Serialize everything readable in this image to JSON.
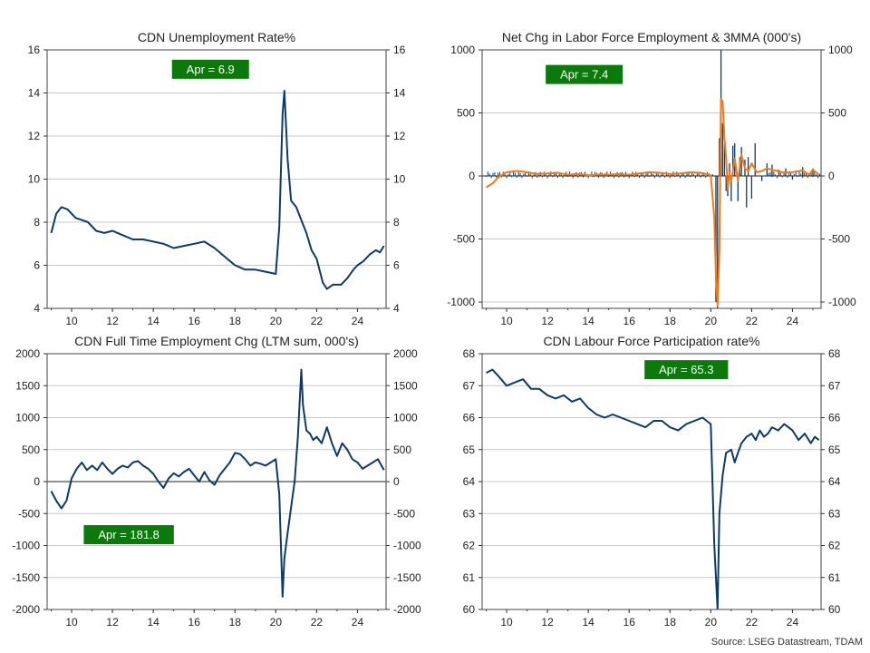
{
  "source": "Source: LSEG Datastream, TDAM",
  "colors": {
    "line": "#0d3a66",
    "orange": "#ef7a1a",
    "badge": "#0b7a0b",
    "grid": "#c8c8c8",
    "axis": "#333333"
  },
  "chart_data": [
    {
      "id": "unemp",
      "type": "line",
      "title": "CDN Unemployment Rate%",
      "ylim": [
        4,
        16
      ],
      "yticks": [
        4,
        6,
        8,
        10,
        12,
        14,
        16
      ],
      "xlim": [
        2008.8,
        2025.4
      ],
      "xticks": [
        10,
        12,
        14,
        16,
        18,
        20,
        22,
        24
      ],
      "annotation": "Apr  = 6.9",
      "annotation_x": 2016.8,
      "annotation_y": 15.1,
      "series": [
        {
          "values": [
            [
              2009.0,
              7.5
            ],
            [
              2009.25,
              8.4
            ],
            [
              2009.5,
              8.7
            ],
            [
              2009.8,
              8.6
            ],
            [
              2010.2,
              8.2
            ],
            [
              2010.5,
              8.1
            ],
            [
              2010.8,
              8.0
            ],
            [
              2011.2,
              7.6
            ],
            [
              2011.6,
              7.5
            ],
            [
              2012.0,
              7.6
            ],
            [
              2012.5,
              7.4
            ],
            [
              2013.0,
              7.2
            ],
            [
              2013.5,
              7.2
            ],
            [
              2014.0,
              7.1
            ],
            [
              2014.5,
              7.0
            ],
            [
              2015.0,
              6.8
            ],
            [
              2015.5,
              6.9
            ],
            [
              2016.0,
              7.0
            ],
            [
              2016.5,
              7.1
            ],
            [
              2017.0,
              6.8
            ],
            [
              2017.5,
              6.4
            ],
            [
              2018.0,
              6.0
            ],
            [
              2018.5,
              5.8
            ],
            [
              2019.0,
              5.8
            ],
            [
              2019.5,
              5.7
            ],
            [
              2020.0,
              5.6
            ],
            [
              2020.17,
              7.8
            ],
            [
              2020.33,
              13.0
            ],
            [
              2020.42,
              14.1
            ],
            [
              2020.58,
              10.9
            ],
            [
              2020.75,
              9.0
            ],
            [
              2021.0,
              8.7
            ],
            [
              2021.25,
              8.1
            ],
            [
              2021.5,
              7.5
            ],
            [
              2021.75,
              6.7
            ],
            [
              2022.0,
              6.3
            ],
            [
              2022.3,
              5.2
            ],
            [
              2022.5,
              4.9
            ],
            [
              2022.8,
              5.1
            ],
            [
              2023.2,
              5.1
            ],
            [
              2023.5,
              5.4
            ],
            [
              2023.8,
              5.8
            ],
            [
              2024.0,
              6.0
            ],
            [
              2024.3,
              6.2
            ],
            [
              2024.6,
              6.5
            ],
            [
              2024.9,
              6.7
            ],
            [
              2025.1,
              6.6
            ],
            [
              2025.3,
              6.9
            ]
          ]
        }
      ]
    },
    {
      "id": "netchg",
      "type": "bar+line",
      "title": "Net Chg in Labor Force Employment & 3MMA (000's)",
      "ylim": [
        -1050,
        1000
      ],
      "yticks": [
        -1000,
        -500,
        0,
        500,
        1000
      ],
      "xlim": [
        2008.8,
        2025.4
      ],
      "xticks": [
        10,
        12,
        14,
        16,
        18,
        20,
        22,
        24
      ],
      "annotation": "Apr  = 7.4",
      "annotation_x": 2013.8,
      "annotation_y": 805,
      "bars": [
        [
          2020.25,
          -1000
        ],
        [
          2020.33,
          -2000
        ],
        [
          2020.42,
          300
        ],
        [
          2020.5,
          1000
        ],
        [
          2020.58,
          420
        ],
        [
          2020.67,
          250
        ],
        [
          2020.75,
          -120
        ],
        [
          2020.83,
          -160
        ],
        [
          2020.92,
          100
        ],
        [
          2021.0,
          -200
        ],
        [
          2021.08,
          240
        ],
        [
          2021.17,
          260
        ],
        [
          2021.33,
          -200
        ],
        [
          2021.42,
          150
        ],
        [
          2021.5,
          230
        ],
        [
          2021.67,
          130
        ],
        [
          2021.75,
          -250
        ],
        [
          2021.83,
          150
        ],
        [
          2022.0,
          -180
        ],
        [
          2022.17,
          260
        ],
        [
          2022.5,
          -40
        ],
        [
          2022.75,
          100
        ],
        [
          2023.0,
          90
        ],
        [
          2023.33,
          50
        ],
        [
          2023.67,
          60
        ],
        [
          2024.0,
          -30
        ],
        [
          2024.5,
          70
        ],
        [
          2025.0,
          60
        ],
        [
          2025.33,
          7
        ]
      ],
      "bars_small_amp": 35,
      "series": [
        {
          "values": [
            [
              2009.0,
              -90
            ],
            [
              2009.3,
              -60
            ],
            [
              2009.6,
              -10
            ],
            [
              2010.0,
              30
            ],
            [
              2010.5,
              40
            ],
            [
              2011.0,
              30
            ],
            [
              2011.5,
              15
            ],
            [
              2012.0,
              20
            ],
            [
              2012.5,
              25
            ],
            [
              2013.0,
              10
            ],
            [
              2013.5,
              15
            ],
            [
              2014.0,
              5
            ],
            [
              2014.5,
              10
            ],
            [
              2015.0,
              10
            ],
            [
              2015.5,
              15
            ],
            [
              2016.0,
              10
            ],
            [
              2016.5,
              20
            ],
            [
              2017.0,
              30
            ],
            [
              2017.5,
              25
            ],
            [
              2018.0,
              15
            ],
            [
              2018.5,
              20
            ],
            [
              2019.0,
              30
            ],
            [
              2019.5,
              25
            ],
            [
              2020.0,
              5
            ],
            [
              2020.17,
              -330
            ],
            [
              2020.25,
              -800
            ],
            [
              2020.33,
              -1030
            ],
            [
              2020.42,
              -600
            ],
            [
              2020.5,
              610
            ],
            [
              2020.58,
              590
            ],
            [
              2020.67,
              300
            ],
            [
              2020.75,
              150
            ],
            [
              2020.83,
              -100
            ],
            [
              2020.92,
              20
            ],
            [
              2021.0,
              -40
            ],
            [
              2021.17,
              140
            ],
            [
              2021.33,
              -40
            ],
            [
              2021.5,
              170
            ],
            [
              2021.67,
              60
            ],
            [
              2021.83,
              40
            ],
            [
              2022.0,
              100
            ],
            [
              2022.25,
              30
            ],
            [
              2022.5,
              40
            ],
            [
              2022.75,
              60
            ],
            [
              2023.0,
              50
            ],
            [
              2023.5,
              30
            ],
            [
              2024.0,
              30
            ],
            [
              2024.5,
              45
            ],
            [
              2024.8,
              10
            ],
            [
              2025.0,
              50
            ],
            [
              2025.3,
              10
            ]
          ]
        }
      ]
    },
    {
      "id": "ftchg",
      "type": "line",
      "title": "CDN Full Time Employment Chg (LTM sum, 000's)",
      "ylim": [
        -2000,
        2000
      ],
      "yticks": [
        -2000,
        -1500,
        -1000,
        -500,
        0,
        500,
        1000,
        1500,
        2000
      ],
      "xlim": [
        2008.8,
        2025.4
      ],
      "xticks": [
        10,
        12,
        14,
        16,
        18,
        20,
        22,
        24
      ],
      "annotation": "Apr  = 181.8",
      "annotation_x": 2012.8,
      "annotation_y": -830,
      "series": [
        {
          "values": [
            [
              2009.0,
              -150
            ],
            [
              2009.25,
              -300
            ],
            [
              2009.5,
              -420
            ],
            [
              2009.75,
              -300
            ],
            [
              2010.0,
              50
            ],
            [
              2010.25,
              200
            ],
            [
              2010.5,
              300
            ],
            [
              2010.75,
              180
            ],
            [
              2011.0,
              250
            ],
            [
              2011.25,
              180
            ],
            [
              2011.5,
              300
            ],
            [
              2011.75,
              200
            ],
            [
              2012.0,
              120
            ],
            [
              2012.25,
              200
            ],
            [
              2012.5,
              250
            ],
            [
              2012.75,
              220
            ],
            [
              2013.0,
              300
            ],
            [
              2013.25,
              320
            ],
            [
              2013.5,
              250
            ],
            [
              2013.75,
              200
            ],
            [
              2014.0,
              120
            ],
            [
              2014.25,
              0
            ],
            [
              2014.5,
              -100
            ],
            [
              2014.75,
              50
            ],
            [
              2015.0,
              130
            ],
            [
              2015.25,
              80
            ],
            [
              2015.5,
              150
            ],
            [
              2015.75,
              200
            ],
            [
              2016.0,
              100
            ],
            [
              2016.25,
              0
            ],
            [
              2016.5,
              150
            ],
            [
              2016.75,
              20
            ],
            [
              2017.0,
              -50
            ],
            [
              2017.25,
              100
            ],
            [
              2017.5,
              200
            ],
            [
              2017.75,
              300
            ],
            [
              2018.0,
              450
            ],
            [
              2018.25,
              430
            ],
            [
              2018.5,
              350
            ],
            [
              2018.75,
              250
            ],
            [
              2019.0,
              300
            ],
            [
              2019.25,
              280
            ],
            [
              2019.5,
              250
            ],
            [
              2019.75,
              300
            ],
            [
              2020.0,
              350
            ],
            [
              2020.17,
              -200
            ],
            [
              2020.33,
              -1800
            ],
            [
              2020.42,
              -1200
            ],
            [
              2020.58,
              -800
            ],
            [
              2020.75,
              -400
            ],
            [
              2020.92,
              0
            ],
            [
              2021.08,
              700
            ],
            [
              2021.25,
              1750
            ],
            [
              2021.33,
              1200
            ],
            [
              2021.5,
              800
            ],
            [
              2021.67,
              750
            ],
            [
              2021.83,
              650
            ],
            [
              2022.0,
              700
            ],
            [
              2022.25,
              600
            ],
            [
              2022.5,
              850
            ],
            [
              2022.75,
              600
            ],
            [
              2023.0,
              400
            ],
            [
              2023.25,
              600
            ],
            [
              2023.5,
              500
            ],
            [
              2023.75,
              350
            ],
            [
              2024.0,
              300
            ],
            [
              2024.25,
              200
            ],
            [
              2024.5,
              250
            ],
            [
              2024.75,
              300
            ],
            [
              2025.0,
              350
            ],
            [
              2025.3,
              182
            ]
          ]
        }
      ]
    },
    {
      "id": "partic",
      "type": "line",
      "title": "CDN Labour Force Participation rate%",
      "ylim": [
        60,
        68
      ],
      "yticks": [
        60,
        61,
        62,
        63,
        64,
        65,
        66,
        67,
        68
      ],
      "xlim": [
        2008.8,
        2025.4
      ],
      "xticks": [
        10,
        12,
        14,
        16,
        18,
        20,
        22,
        24
      ],
      "annotation": "Apr  = 65.3",
      "annotation_x": 2018.8,
      "annotation_y": 67.5,
      "series": [
        {
          "values": [
            [
              2009.0,
              67.4
            ],
            [
              2009.3,
              67.5
            ],
            [
              2009.6,
              67.3
            ],
            [
              2010.0,
              67.0
            ],
            [
              2010.4,
              67.1
            ],
            [
              2010.8,
              67.2
            ],
            [
              2011.2,
              66.9
            ],
            [
              2011.6,
              66.9
            ],
            [
              2012.0,
              66.7
            ],
            [
              2012.4,
              66.6
            ],
            [
              2012.8,
              66.7
            ],
            [
              2013.2,
              66.5
            ],
            [
              2013.6,
              66.6
            ],
            [
              2014.0,
              66.3
            ],
            [
              2014.4,
              66.1
            ],
            [
              2014.8,
              66.0
            ],
            [
              2015.2,
              66.1
            ],
            [
              2015.6,
              66.0
            ],
            [
              2016.0,
              65.9
            ],
            [
              2016.4,
              65.8
            ],
            [
              2016.8,
              65.7
            ],
            [
              2017.2,
              65.9
            ],
            [
              2017.6,
              65.9
            ],
            [
              2018.0,
              65.7
            ],
            [
              2018.4,
              65.6
            ],
            [
              2018.8,
              65.8
            ],
            [
              2019.2,
              65.9
            ],
            [
              2019.6,
              66.0
            ],
            [
              2020.0,
              65.8
            ],
            [
              2020.17,
              62.0
            ],
            [
              2020.33,
              60.0
            ],
            [
              2020.42,
              63.0
            ],
            [
              2020.58,
              64.2
            ],
            [
              2020.75,
              64.9
            ],
            [
              2021.0,
              65.0
            ],
            [
              2021.17,
              64.6
            ],
            [
              2021.33,
              64.9
            ],
            [
              2021.5,
              65.2
            ],
            [
              2021.75,
              65.4
            ],
            [
              2022.0,
              65.5
            ],
            [
              2022.2,
              65.3
            ],
            [
              2022.4,
              65.6
            ],
            [
              2022.6,
              65.4
            ],
            [
              2022.8,
              65.5
            ],
            [
              2023.0,
              65.7
            ],
            [
              2023.3,
              65.6
            ],
            [
              2023.6,
              65.8
            ],
            [
              2024.0,
              65.6
            ],
            [
              2024.3,
              65.3
            ],
            [
              2024.6,
              65.5
            ],
            [
              2024.9,
              65.2
            ],
            [
              2025.1,
              65.4
            ],
            [
              2025.3,
              65.3
            ]
          ]
        }
      ]
    }
  ]
}
